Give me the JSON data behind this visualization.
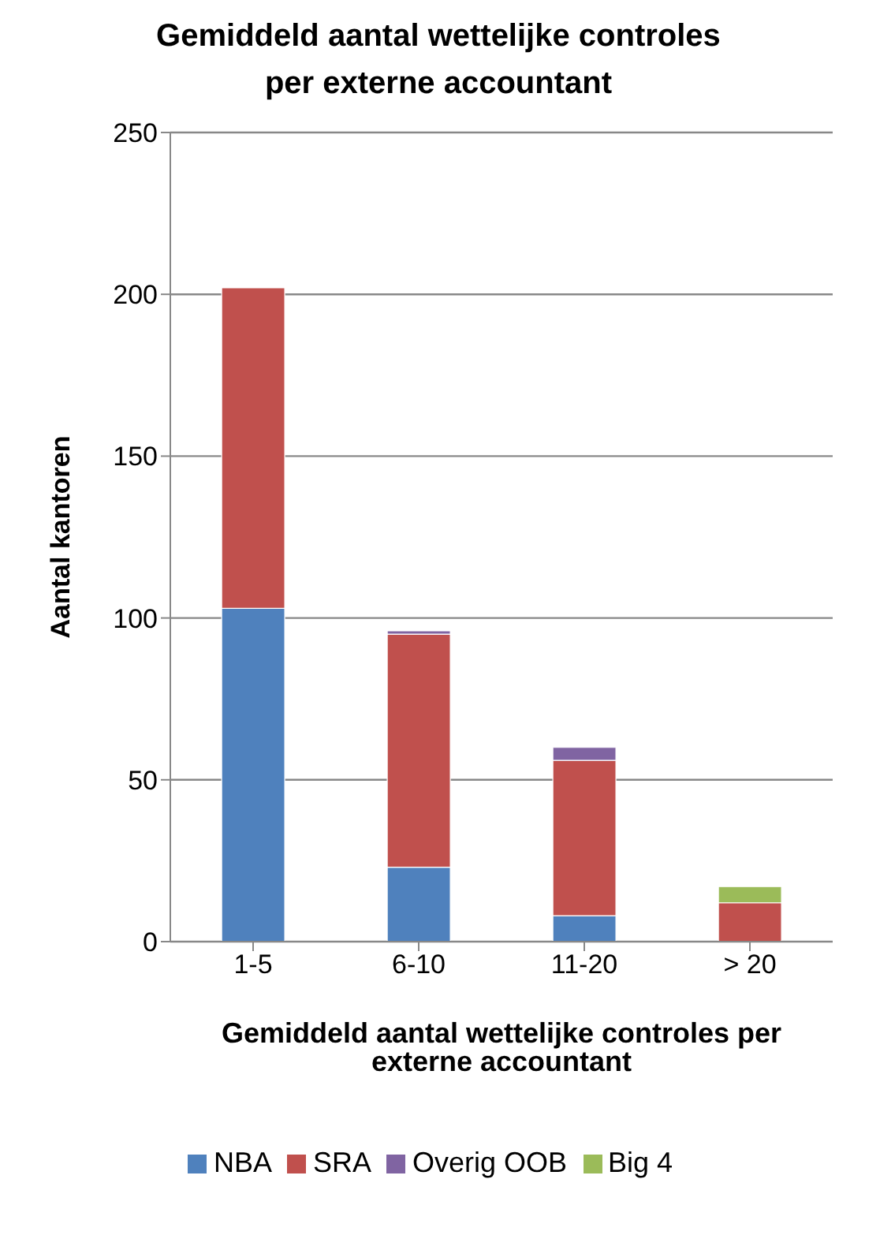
{
  "chart_data": {
    "type": "bar",
    "title": "Gemiddeld aantal wettelijke controles per externe accountant",
    "xlabel": "Gemiddeld aantal wettelijke controles per externe accountant",
    "ylabel": "Aantal kantoren",
    "categories": [
      "1-5",
      "6-10",
      "11-20",
      "> 20"
    ],
    "stacked": true,
    "ylim": [
      0,
      250
    ],
    "yticks": [
      0,
      50,
      100,
      150,
      200,
      250
    ],
    "grid": "y",
    "legend": "bottom",
    "series": [
      {
        "name": "NBA",
        "color": "#4f81bd",
        "values": [
          103,
          23,
          8,
          0
        ]
      },
      {
        "name": "SRA",
        "color": "#c0504d",
        "values": [
          99,
          72,
          48,
          12
        ]
      },
      {
        "name": "Overig OOB",
        "color": "#8064a2",
        "values": [
          0,
          1,
          4,
          0
        ]
      },
      {
        "name": "Big 4",
        "color": "#9bbb59",
        "values": [
          0,
          0,
          0,
          5
        ]
      }
    ]
  }
}
